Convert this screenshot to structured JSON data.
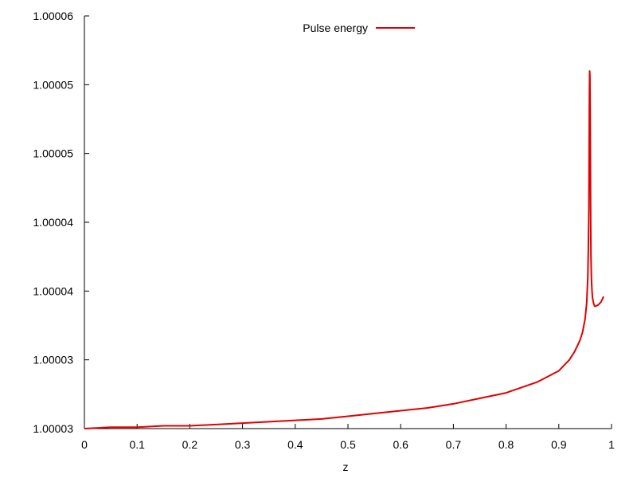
{
  "chart_data": {
    "type": "line",
    "title": "",
    "xlabel": "z",
    "ylabel": "",
    "xlim": [
      0,
      1
    ],
    "ylim": [
      1.00003,
      1.00006
    ],
    "grid": false,
    "legend_position": "top-center",
    "x_ticks": [
      {
        "value": 0,
        "label": "0"
      },
      {
        "value": 0.1,
        "label": "0.1"
      },
      {
        "value": 0.2,
        "label": "0.2"
      },
      {
        "value": 0.3,
        "label": "0.3"
      },
      {
        "value": 0.4,
        "label": "0.4"
      },
      {
        "value": 0.5,
        "label": "0.5"
      },
      {
        "value": 0.6,
        "label": "0.6"
      },
      {
        "value": 0.7,
        "label": "0.7"
      },
      {
        "value": 0.8,
        "label": "0.8"
      },
      {
        "value": 0.9,
        "label": "0.9"
      },
      {
        "value": 1,
        "label": "1"
      }
    ],
    "y_ticks": [
      {
        "value": 1.00003,
        "label": "1.00003"
      },
      {
        "value": 1.000035,
        "label": "1.00003"
      },
      {
        "value": 1.00004,
        "label": "1.00004"
      },
      {
        "value": 1.000045,
        "label": "1.00004"
      },
      {
        "value": 1.00005,
        "label": "1.00005"
      },
      {
        "value": 1.000055,
        "label": "1.00005"
      },
      {
        "value": 1.00006,
        "label": "1.00006"
      }
    ],
    "series": [
      {
        "name": "Pulse energy",
        "color": "#e00000",
        "x": [
          0,
          0.05,
          0.1,
          0.15,
          0.2,
          0.25,
          0.3,
          0.35,
          0.4,
          0.45,
          0.5,
          0.55,
          0.6,
          0.65,
          0.7,
          0.75,
          0.8,
          0.83,
          0.86,
          0.88,
          0.9,
          0.91,
          0.92,
          0.93,
          0.94,
          0.945,
          0.95,
          0.953,
          0.955,
          0.956,
          0.957,
          0.9575,
          0.958,
          0.9585,
          0.959,
          0.9595,
          0.96,
          0.9605,
          0.961,
          0.962,
          0.963,
          0.964,
          0.966,
          0.968,
          0.97,
          0.975,
          0.98,
          0.985
        ],
        "y": [
          1.00003,
          1.0000301,
          1.0000301,
          1.0000302,
          1.0000302,
          1.0000303,
          1.0000304,
          1.0000305,
          1.0000306,
          1.0000307,
          1.0000309,
          1.0000311,
          1.0000313,
          1.0000315,
          1.0000318,
          1.0000322,
          1.0000326,
          1.000033,
          1.0000334,
          1.0000338,
          1.0000342,
          1.0000346,
          1.000035,
          1.0000356,
          1.0000364,
          1.000037,
          1.000038,
          1.0000392,
          1.000041,
          1.000043,
          1.000046,
          1.00005,
          1.000054,
          1.000056,
          1.0000557,
          1.000053,
          1.000049,
          1.000045,
          1.0000425,
          1.0000408,
          1.00004,
          1.0000395,
          1.0000391,
          1.0000389,
          1.0000389,
          1.000039,
          1.0000392,
          1.0000396
        ]
      }
    ]
  }
}
